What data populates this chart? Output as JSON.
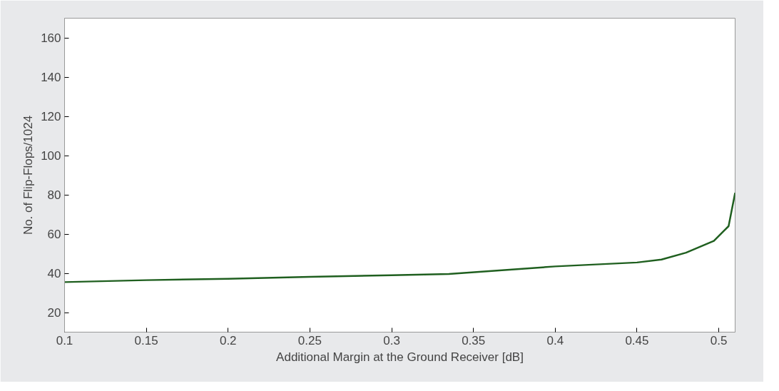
{
  "chart_data": {
    "type": "line",
    "xlabel": "Additional Margin at the Ground Receiver [dB]",
    "ylabel": "No. of Flip-Flops/1024",
    "x": [
      0.1,
      0.15,
      0.2,
      0.25,
      0.3,
      0.335,
      0.4,
      0.45,
      0.465,
      0.48,
      0.497,
      0.506,
      0.51
    ],
    "series": [
      {
        "color": "#1f5f1f",
        "values": [
          35.5,
          36.5,
          37.2,
          38.2,
          39,
          39.6,
          43.5,
          45.5,
          47,
          50.5,
          56.5,
          64,
          81
        ]
      }
    ],
    "xlim": [
      0.1,
      0.51
    ],
    "ylim": [
      10,
      170
    ],
    "xticks": [
      0.1,
      0.15,
      0.2,
      0.25,
      0.3,
      0.35,
      0.4,
      0.45,
      0.5
    ],
    "yticks": [
      20,
      40,
      60,
      80,
      100,
      120,
      140,
      160
    ],
    "grid": false,
    "marker": "none",
    "line_style": "solid"
  }
}
